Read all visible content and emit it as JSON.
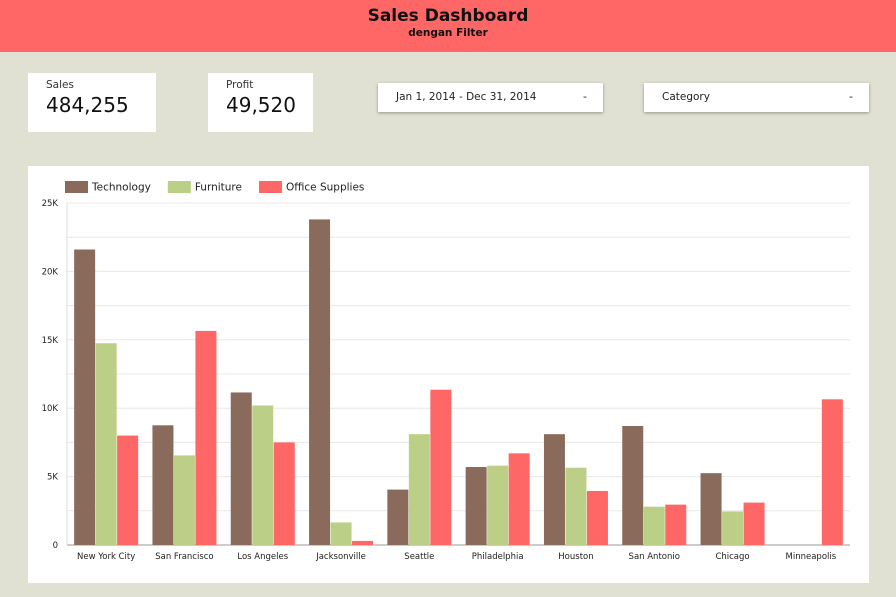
{
  "header": {
    "title": "Sales Dashboard",
    "subtitle": "dengan Filter"
  },
  "kpis": {
    "sales": {
      "label": "Sales",
      "value": "484,255"
    },
    "profit": {
      "label": "Profit",
      "value": "49,520"
    }
  },
  "filters": {
    "date_range": {
      "value": "Jan 1, 2014 - Dec 31, 2014",
      "arrow": "-"
    },
    "category": {
      "value": "Category",
      "arrow": "-"
    }
  },
  "colors": {
    "Technology": "#8a6a5a",
    "Furniture": "#bccf86",
    "Office Supplies": "#ff6666"
  },
  "chart_data": {
    "type": "bar",
    "categories": [
      "New York City",
      "San Francisco",
      "Los Angeles",
      "Jacksonville",
      "Seattle",
      "Philadelphia",
      "Houston",
      "San Antonio",
      "Chicago",
      "Minneapolis"
    ],
    "series": [
      {
        "name": "Technology",
        "values": [
          21600,
          8750,
          11150,
          23800,
          4050,
          5700,
          8100,
          8700,
          5250,
          0
        ]
      },
      {
        "name": "Furniture",
        "values": [
          14750,
          6550,
          10200,
          1650,
          8100,
          5800,
          5650,
          2800,
          2450,
          0
        ]
      },
      {
        "name": "Office Supplies",
        "values": [
          8000,
          15650,
          7500,
          300,
          11350,
          6700,
          3950,
          2950,
          3100,
          10650
        ]
      }
    ],
    "yticks": [
      "0",
      "5K",
      "10K",
      "15K",
      "20K",
      "25K"
    ],
    "ylim": [
      0,
      25000
    ],
    "grid": true,
    "legend_position": "top-left"
  }
}
